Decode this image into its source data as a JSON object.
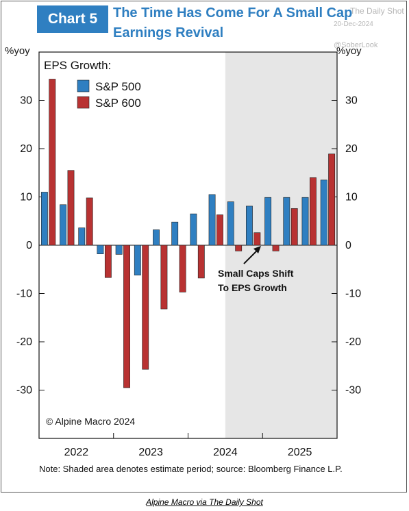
{
  "header": {
    "badge": "Chart 5",
    "title_line_1": "The Time Has Come For A Small Cap",
    "title_line_2": "Earnings Revival"
  },
  "watermark": {
    "source": "The Daily Shot",
    "date": "20-Dec-2024",
    "handle": "@SoberLook"
  },
  "note": "Note: Shaded area denotes estimate period; source: Bloomberg Finance L.P.",
  "footer_credit": "Alpine Macro via The Daily Shot",
  "colors": {
    "sp500": "#2f7fc1",
    "sp600": "#b83232",
    "shade": "#e6e6e6",
    "title_blue": "#2f7fc1"
  },
  "chart_data": {
    "type": "bar",
    "unit_left": "%yoy",
    "unit_right": "%yoy",
    "legend_title": "EPS Growth:",
    "legend_position": "top-left",
    "copyright": "© Alpine Macro 2024",
    "annotation": "Small Caps Shift\nTo EPS Growth",
    "year_labels": [
      "2022",
      "2023",
      "2024",
      "2025"
    ],
    "ylim": [
      -40,
      40
    ],
    "yticks": [
      -30,
      -20,
      -10,
      0,
      10,
      20,
      30
    ],
    "shaded_from_quarter": "2024Q3",
    "categories": [
      "2022Q1",
      "2022Q2",
      "2022Q3",
      "2022Q4",
      "2023Q1",
      "2023Q2",
      "2023Q3",
      "2023Q4",
      "2024Q1",
      "2024Q2",
      "2024Q3",
      "2024Q4",
      "2025Q1",
      "2025Q2",
      "2025Q3",
      "2025Q4"
    ],
    "series": [
      {
        "name": "S&P 500",
        "values": [
          11.0,
          8.4,
          3.6,
          -1.8,
          -1.9,
          -6.2,
          3.2,
          4.8,
          6.5,
          10.5,
          9.0,
          8.1,
          9.9,
          9.9,
          9.9,
          13.5
        ]
      },
      {
        "name": "S&P 600",
        "values": [
          34.4,
          15.5,
          9.8,
          -6.7,
          -29.5,
          -25.7,
          -13.2,
          -9.7,
          -6.8,
          6.3,
          -1.2,
          2.6,
          -1.2,
          7.6,
          14.0,
          18.9
        ]
      }
    ]
  }
}
